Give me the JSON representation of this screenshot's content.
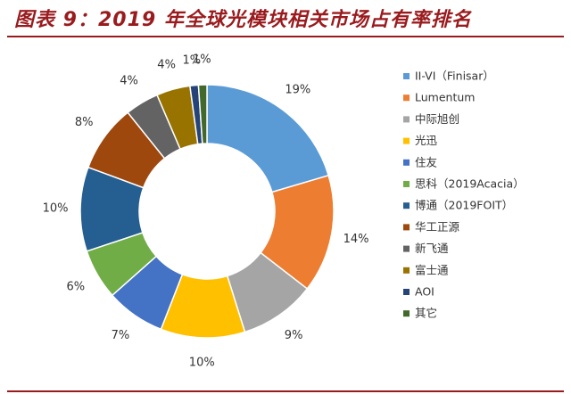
{
  "figure_title": "图表 9：2019 年全球光模块相关市场占有率排名",
  "chart_data": {
    "type": "pie",
    "variant": "donut",
    "title": "",
    "legend_position": "right",
    "slices": [
      {
        "name": "II-VI（Finisar）",
        "value": 19,
        "label": "19%",
        "color": "#5b9bd5"
      },
      {
        "name": "Lumentum",
        "value": 14,
        "label": "14%",
        "color": "#ed7d31"
      },
      {
        "name": "中际旭创",
        "value": 9,
        "label": "9%",
        "color": "#a5a5a5"
      },
      {
        "name": "光迅",
        "value": 10,
        "label": "10%",
        "color": "#ffc000"
      },
      {
        "name": "住友",
        "value": 7,
        "label": "7%",
        "color": "#4472c4"
      },
      {
        "name": "思科（2019Acacia）",
        "value": 6,
        "label": "6%",
        "color": "#70ad47"
      },
      {
        "name": "博通（2019FOIT）",
        "value": 10,
        "label": "10%",
        "color": "#255e91"
      },
      {
        "name": "华工正源",
        "value": 8,
        "label": "8%",
        "color": "#9e480e"
      },
      {
        "name": "新飞通",
        "value": 4,
        "label": "4%",
        "color": "#636363"
      },
      {
        "name": "富士通",
        "value": 4,
        "label": "4%",
        "color": "#997300"
      },
      {
        "name": "AOI",
        "value": 1,
        "label": "1%",
        "color": "#264478"
      },
      {
        "name": "其它",
        "value": 1,
        "label": "1%",
        "color": "#43682b"
      }
    ]
  },
  "colors": {
    "title": "#9a1b1e",
    "rule": "#9a1b1e",
    "label_text": "#333333"
  }
}
